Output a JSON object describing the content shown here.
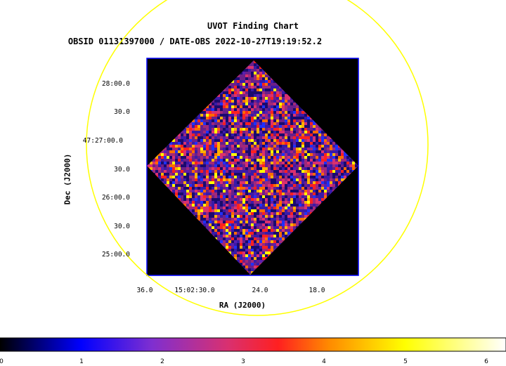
{
  "title": "UVOT Finding Chart",
  "subtitle": "OBSID 01131397000 / DATE-OBS 2022-10-27T19:19:52.2",
  "y_axis": {
    "label": "Dec (J2000)",
    "ticks": [
      "28:00.0",
      "30.0",
      "47:27:00.0",
      "30.0",
      "26:00.0",
      "30.0",
      "25:00.0"
    ]
  },
  "x_axis": {
    "label": "RA (J2000)",
    "ticks": [
      "36.0",
      "15:02:30.0",
      "24.0",
      "18.0"
    ]
  },
  "colorbar": {
    "ticks": [
      "0",
      "1",
      "2",
      "3",
      "4",
      "5",
      "6"
    ]
  },
  "colors": {
    "circle": "#ffff00",
    "frame": "#0000ff",
    "background": "#000000"
  }
}
